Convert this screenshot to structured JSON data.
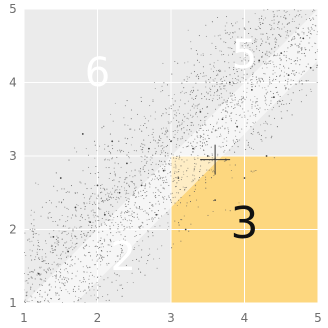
{
  "chart_data": {
    "type": "scatter",
    "title": "",
    "xlabel": "",
    "ylabel": "",
    "xlim": [
      1,
      5
    ],
    "ylim": [
      1,
      5
    ],
    "x_ticks": [
      "1",
      "2",
      "3",
      "4",
      "5"
    ],
    "y_ticks": [
      "1",
      "2",
      "3",
      "4",
      "5"
    ],
    "grid": true,
    "legend": "none",
    "crosshair": [
      3.6,
      2.95
    ],
    "regions": [
      {
        "label": "6",
        "x": [
          1,
          3
        ],
        "y": [
          3,
          5
        ],
        "color": "#ebebeb",
        "label_at": [
          2,
          4.1
        ],
        "label_color": "#ffffff"
      },
      {
        "label": "5",
        "x": [
          3,
          5
        ],
        "y": [
          3,
          5
        ],
        "color": "#ebebeb",
        "label_at": [
          4.0,
          4.35
        ],
        "label_color": "#ffffff"
      },
      {
        "label": "2",
        "x": [
          1,
          3
        ],
        "y": [
          1,
          3
        ],
        "color": "#ebebeb",
        "label_at": [
          2.35,
          1.6
        ],
        "label_color": "#ffffff"
      },
      {
        "label": "3",
        "x": [
          3,
          5
        ],
        "y": [
          1,
          3
        ],
        "color": "#fdd77f",
        "label_at": [
          4.0,
          2.05
        ],
        "label_color": "#111111"
      }
    ],
    "series": [
      {
        "description": "dense scatter of points concentrated around the diagonal y = x",
        "approx_points": [
          [
            1.2,
            1.4
          ],
          [
            1.4,
            1.9
          ],
          [
            1.6,
            1.7
          ],
          [
            1.7,
            2.3
          ],
          [
            1.9,
            2.1
          ],
          [
            2.0,
            2.6
          ],
          [
            2.1,
            2.2
          ],
          [
            2.3,
            2.5
          ],
          [
            2.4,
            2.9
          ],
          [
            2.6,
            2.6
          ],
          [
            2.7,
            3.1
          ],
          [
            2.9,
            2.8
          ],
          [
            3.0,
            3.2
          ],
          [
            3.1,
            2.7
          ],
          [
            3.3,
            3.1
          ],
          [
            3.4,
            3.6
          ],
          [
            3.5,
            3.0
          ],
          [
            3.7,
            3.5
          ],
          [
            3.8,
            4.0
          ],
          [
            3.9,
            3.4
          ],
          [
            4.1,
            3.9
          ],
          [
            4.2,
            4.3
          ],
          [
            4.4,
            3.8
          ],
          [
            4.5,
            4.4
          ],
          [
            4.6,
            4.1
          ],
          [
            4.8,
            4.6
          ],
          [
            4.9,
            4.2
          ],
          [
            2.2,
            3.2
          ],
          [
            1.5,
            2.7
          ],
          [
            3.6,
            2.4
          ],
          [
            4.3,
            3.0
          ],
          [
            2.8,
            2.2
          ],
          [
            3.2,
            2.0
          ],
          [
            4.0,
            2.7
          ],
          [
            1.8,
            3.3
          ]
        ]
      }
    ]
  }
}
